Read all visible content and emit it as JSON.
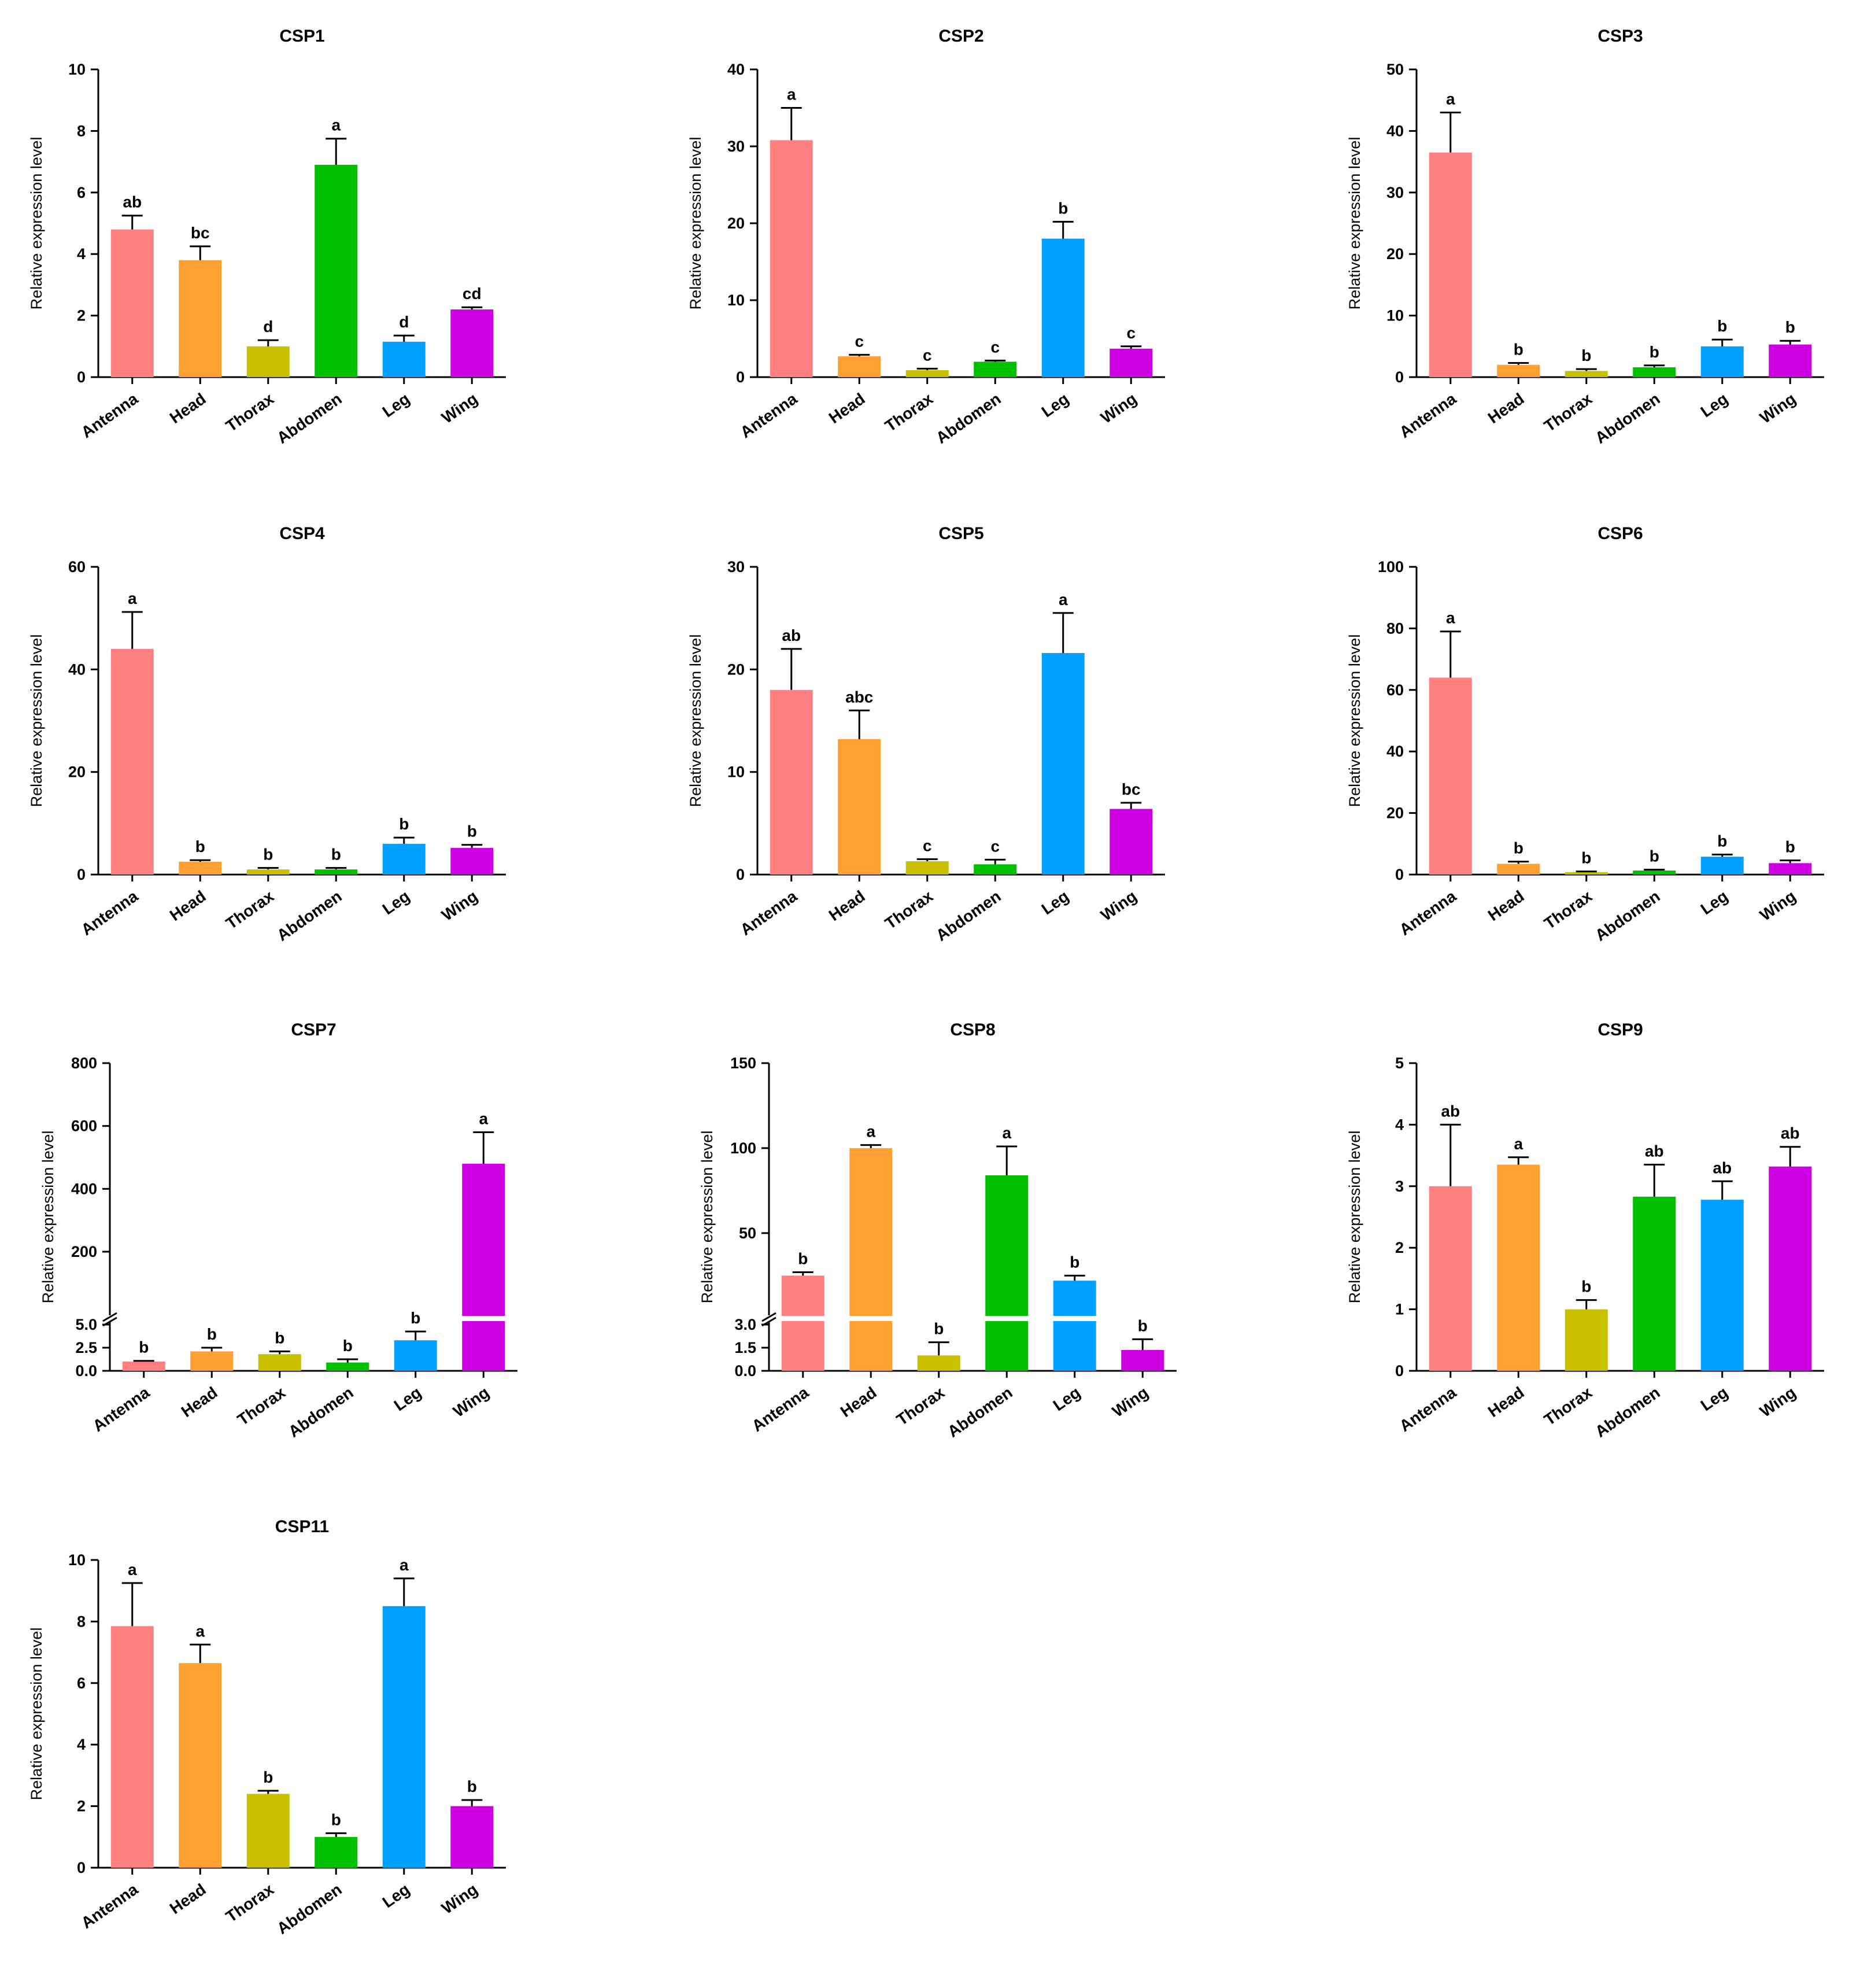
{
  "chart_data": [
    {
      "type": "bar",
      "title": "CSP1",
      "ylabel": "Relative expression level",
      "xlabel": "",
      "categories": [
        "Antenna",
        "Head",
        "Thorax",
        "Abdomen",
        "Leg",
        "Wing"
      ],
      "values": [
        4.8,
        3.8,
        1.0,
        6.9,
        1.15,
        2.2
      ],
      "errors": [
        0.45,
        0.45,
        0.2,
        0.85,
        0.2,
        0.07
      ],
      "letters": [
        "ab",
        "bc",
        "d",
        "a",
        "d",
        "cd"
      ],
      "ylim": [
        0,
        10
      ],
      "yticks": [
        0,
        2,
        4,
        6,
        8,
        10
      ],
      "colors": [
        "#FF8080",
        "#FFA033",
        "#C8C000",
        "#00C000",
        "#00A0FF",
        "#CC00E0"
      ]
    },
    {
      "type": "bar",
      "title": "CSP2",
      "ylabel": "Relative expression level",
      "xlabel": "",
      "categories": [
        "Antenna",
        "Head",
        "Thorax",
        "Abdomen",
        "Leg",
        "Wing"
      ],
      "values": [
        30.8,
        2.7,
        0.9,
        2.0,
        18.0,
        3.7
      ],
      "errors": [
        4.2,
        0.2,
        0.2,
        0.15,
        2.2,
        0.3
      ],
      "letters": [
        "a",
        "c",
        "c",
        "c",
        "b",
        "c"
      ],
      "ylim": [
        0,
        40
      ],
      "yticks": [
        0,
        10,
        20,
        30,
        40
      ],
      "colors": [
        "#FF8080",
        "#FFA033",
        "#C8C000",
        "#00C000",
        "#00A0FF",
        "#CC00E0"
      ]
    },
    {
      "type": "bar",
      "title": "CSP3",
      "ylabel": "Relative expression level",
      "xlabel": "",
      "categories": [
        "Antenna",
        "Head",
        "Thorax",
        "Abdomen",
        "Leg",
        "Wing"
      ],
      "values": [
        36.5,
        2.0,
        1.0,
        1.6,
        5.0,
        5.3
      ],
      "errors": [
        6.5,
        0.3,
        0.3,
        0.3,
        1.1,
        0.6
      ],
      "letters": [
        "a",
        "b",
        "b",
        "b",
        "b",
        "b"
      ],
      "ylim": [
        0,
        50
      ],
      "yticks": [
        0,
        10,
        20,
        30,
        40,
        50
      ],
      "colors": [
        "#FF8080",
        "#FFA033",
        "#C8C000",
        "#00C000",
        "#00A0FF",
        "#CC00E0"
      ]
    },
    {
      "type": "bar",
      "title": "CSP4",
      "ylabel": "Relative expression level",
      "xlabel": "",
      "categories": [
        "Antenna",
        "Head",
        "Thorax",
        "Abdomen",
        "Leg",
        "Wing"
      ],
      "values": [
        44.0,
        2.5,
        1.0,
        1.0,
        6.0,
        5.2
      ],
      "errors": [
        7.2,
        0.3,
        0.3,
        0.3,
        1.2,
        0.6
      ],
      "letters": [
        "a",
        "b",
        "b",
        "b",
        "b",
        "b"
      ],
      "ylim": [
        0,
        60
      ],
      "yticks": [
        0,
        20,
        40,
        60
      ],
      "colors": [
        "#FF8080",
        "#FFA033",
        "#C8C000",
        "#00C000",
        "#00A0FF",
        "#CC00E0"
      ]
    },
    {
      "type": "bar",
      "title": "CSP5",
      "ylabel": "Relative expression level",
      "xlabel": "",
      "categories": [
        "Antenna",
        "Head",
        "Thorax",
        "Abdomen",
        "Leg",
        "Wing"
      ],
      "values": [
        18.0,
        13.2,
        1.3,
        1.0,
        21.6,
        6.4
      ],
      "errors": [
        4.0,
        2.8,
        0.2,
        0.45,
        3.9,
        0.6
      ],
      "letters": [
        "ab",
        "abc",
        "c",
        "c",
        "a",
        "bc"
      ],
      "ylim": [
        0,
        30
      ],
      "yticks": [
        0,
        10,
        20,
        30
      ],
      "colors": [
        "#FF8080",
        "#FFA033",
        "#C8C000",
        "#00C000",
        "#00A0FF",
        "#CC00E0"
      ]
    },
    {
      "type": "bar",
      "title": "CSP6",
      "ylabel": "Relative expression level",
      "xlabel": "",
      "categories": [
        "Antenna",
        "Head",
        "Thorax",
        "Abdomen",
        "Leg",
        "Wing"
      ],
      "values": [
        64.0,
        3.5,
        0.8,
        1.3,
        5.8,
        3.7
      ],
      "errors": [
        15.0,
        0.7,
        0.2,
        0.3,
        0.7,
        0.9
      ],
      "letters": [
        "a",
        "b",
        "b",
        "b",
        "b",
        "b"
      ],
      "ylim": [
        0,
        100
      ],
      "yticks": [
        0,
        20,
        40,
        60,
        80,
        100
      ],
      "colors": [
        "#FF8080",
        "#FFA033",
        "#C8C000",
        "#00C000",
        "#00A0FF",
        "#CC00E0"
      ]
    },
    {
      "type": "bar",
      "title": "CSP7",
      "ylabel": "Relative expression level",
      "xlabel": "",
      "categories": [
        "Antenna",
        "Head",
        "Thorax",
        "Abdomen",
        "Leg",
        "Wing"
      ],
      "values": [
        1.0,
        2.1,
        1.8,
        0.9,
        3.3,
        480
      ],
      "errors": [
        0.08,
        0.4,
        0.3,
        0.35,
        0.95,
        100
      ],
      "letters": [
        "b",
        "b",
        "b",
        "b",
        "b",
        "a"
      ],
      "broken_axis": {
        "lower_range": [
          0,
          5.0
        ],
        "lower_ticks": [
          "0.0",
          "2.5",
          "5.0"
        ],
        "upper_range": [
          5.0,
          800
        ],
        "upper_ticks": [
          "200",
          "400",
          "600",
          "800"
        ]
      },
      "colors": [
        "#FF8080",
        "#FFA033",
        "#C8C000",
        "#00C000",
        "#00A0FF",
        "#CC00E0"
      ]
    },
    {
      "type": "bar",
      "title": "CSP8",
      "ylabel": "Relative expression level",
      "xlabel": "",
      "categories": [
        "Antenna",
        "Head",
        "Thorax",
        "Abdomen",
        "Leg",
        "Wing"
      ],
      "values": [
        25.0,
        100.0,
        1.0,
        84.0,
        22.0,
        1.35
      ],
      "errors": [
        2.0,
        1.8,
        0.85,
        17.0,
        3.0,
        0.7
      ],
      "letters": [
        "b",
        "a",
        "b",
        "a",
        "b",
        "b"
      ],
      "broken_axis": {
        "lower_range": [
          0,
          3.0
        ],
        "lower_ticks": [
          "0.0",
          "1.5",
          "3.0"
        ],
        "upper_range": [
          3.0,
          150
        ],
        "upper_ticks": [
          "50",
          "100",
          "150"
        ]
      },
      "colors": [
        "#FF8080",
        "#FFA033",
        "#C8C000",
        "#00C000",
        "#00A0FF",
        "#CC00E0"
      ]
    },
    {
      "type": "bar",
      "title": "CSP9",
      "ylabel": "Relative expression level",
      "xlabel": "",
      "categories": [
        "Antenna",
        "Head",
        "Thorax",
        "Abdomen",
        "Leg",
        "Wing"
      ],
      "values": [
        3.0,
        3.35,
        1.0,
        2.83,
        2.78,
        3.32
      ],
      "errors": [
        1.0,
        0.12,
        0.15,
        0.52,
        0.3,
        0.32
      ],
      "letters": [
        "ab",
        "a",
        "b",
        "ab",
        "ab",
        "ab"
      ],
      "ylim": [
        0,
        5
      ],
      "yticks": [
        0,
        1,
        2,
        3,
        4,
        5
      ],
      "colors": [
        "#FF8080",
        "#FFA033",
        "#C8C000",
        "#00C000",
        "#00A0FF",
        "#CC00E0"
      ]
    },
    {
      "type": "bar",
      "title": "CSP11",
      "ylabel": "Relative expression level",
      "xlabel": "",
      "categories": [
        "Antenna",
        "Head",
        "Thorax",
        "Abdomen",
        "Leg",
        "Wing"
      ],
      "values": [
        7.85,
        6.65,
        2.4,
        1.0,
        8.5,
        2.0
      ],
      "errors": [
        1.4,
        0.6,
        0.1,
        0.12,
        0.9,
        0.2
      ],
      "letters": [
        "a",
        "a",
        "b",
        "b",
        "a",
        "b"
      ],
      "ylim": [
        0,
        10
      ],
      "yticks": [
        0,
        2,
        4,
        6,
        8,
        10
      ],
      "colors": [
        "#FF8080",
        "#FFA033",
        "#C8C000",
        "#00C000",
        "#00A0FF",
        "#CC00E0"
      ]
    }
  ]
}
